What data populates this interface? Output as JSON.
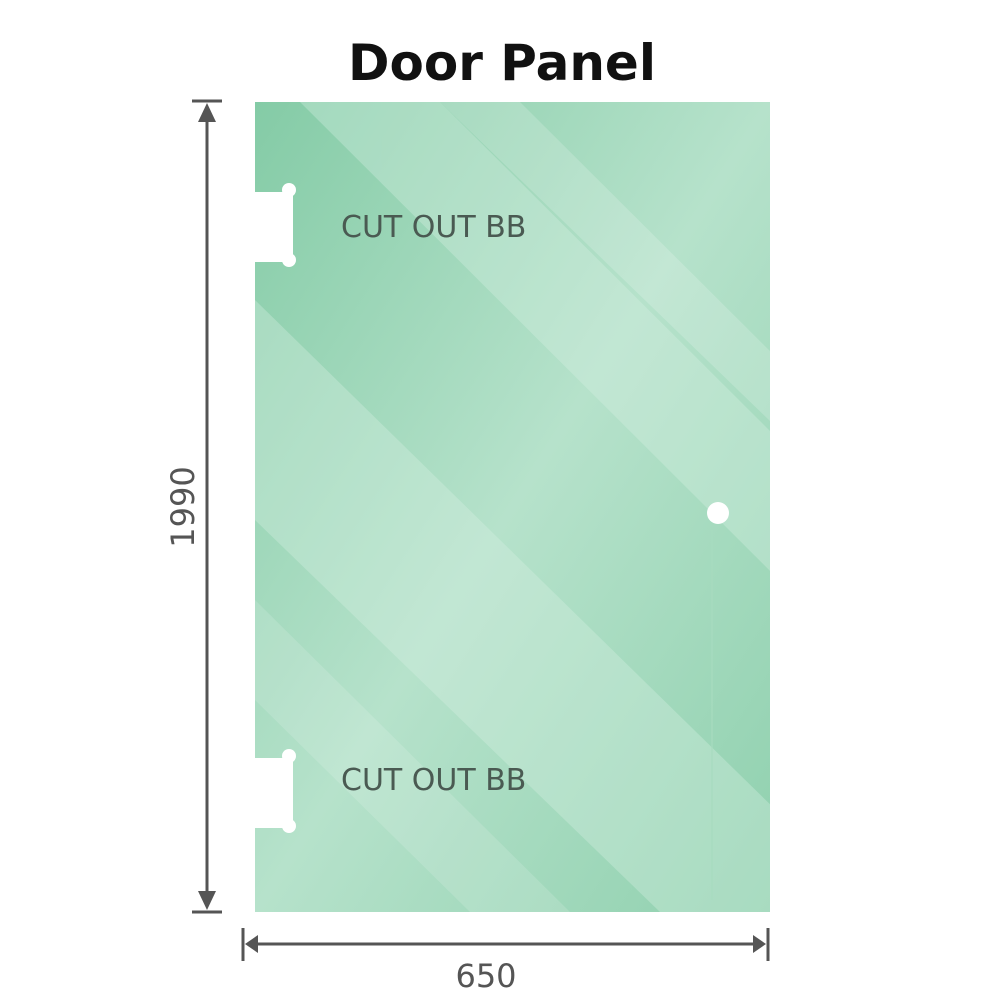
{
  "title": "Door Panel",
  "panel": {
    "color": "#8dcfac",
    "cutouts": [
      {
        "label": "CUT OUT BB"
      },
      {
        "label": "CUT OUT BB"
      }
    ]
  },
  "dimensions": {
    "height": "1990",
    "width": "650",
    "arrow_color": "#555555"
  }
}
